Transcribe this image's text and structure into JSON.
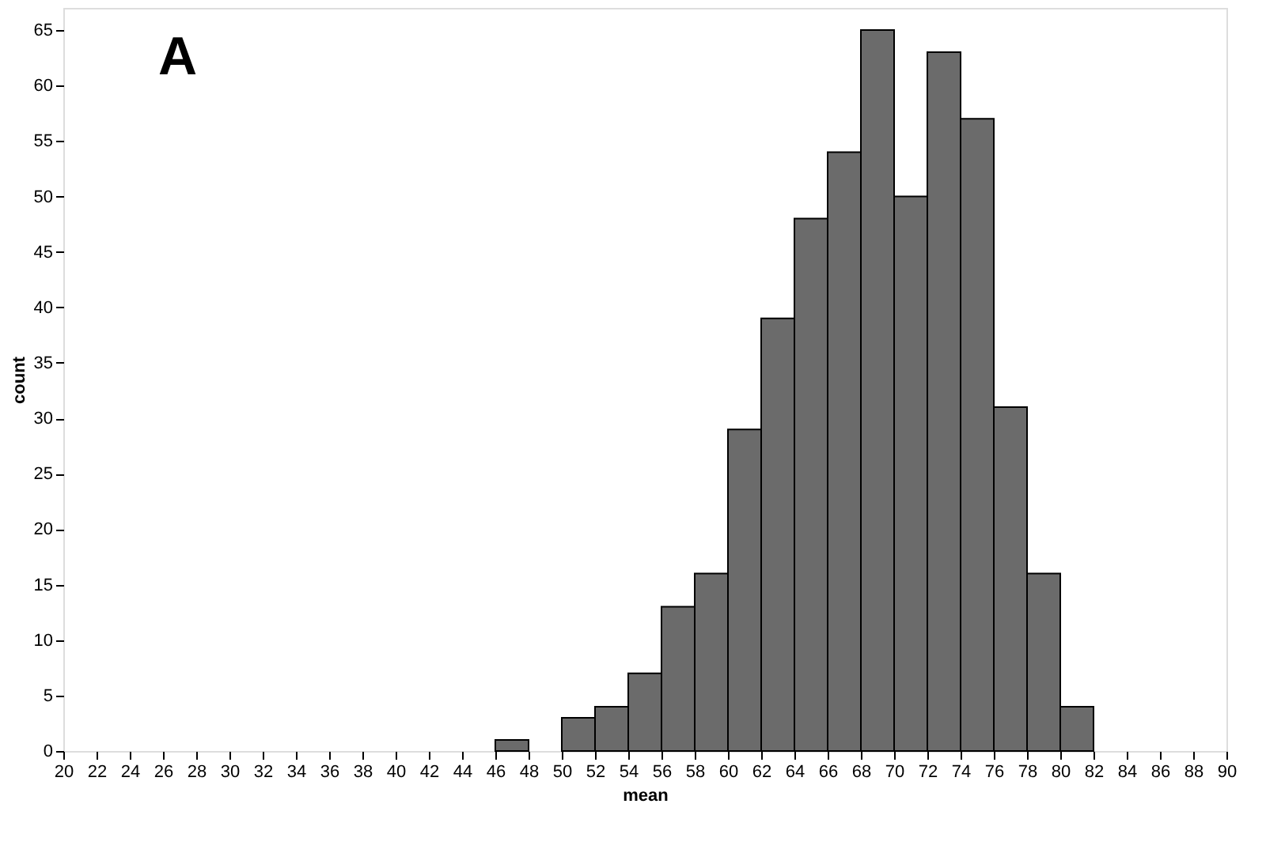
{
  "chart_data": {
    "type": "histogram",
    "xlabel": "mean",
    "ylabel": "count",
    "annotations": [
      "A"
    ],
    "bins": [
      46,
      48,
      50,
      52,
      54,
      56,
      58,
      60,
      62,
      64,
      66,
      68,
      70,
      72,
      74,
      76,
      78,
      80,
      82
    ],
    "values": [
      1,
      0,
      3,
      4,
      7,
      13,
      16,
      29,
      39,
      48,
      54,
      65,
      50,
      63,
      57,
      31,
      16,
      4
    ],
    "color": "#6b6b6b",
    "xlim": [
      20,
      90
    ],
    "xticks": [
      20,
      22,
      24,
      26,
      28,
      30,
      32,
      34,
      36,
      38,
      40,
      42,
      44,
      46,
      48,
      50,
      52,
      54,
      56,
      58,
      60,
      62,
      64,
      66,
      68,
      70,
      72,
      74,
      76,
      78,
      80,
      82,
      84,
      86,
      88,
      90
    ],
    "ylim": [
      0,
      67
    ],
    "yticks": [
      0,
      5,
      10,
      15,
      20,
      25,
      30,
      35,
      40,
      45,
      50,
      55,
      60,
      65
    ],
    "grid": false
  }
}
